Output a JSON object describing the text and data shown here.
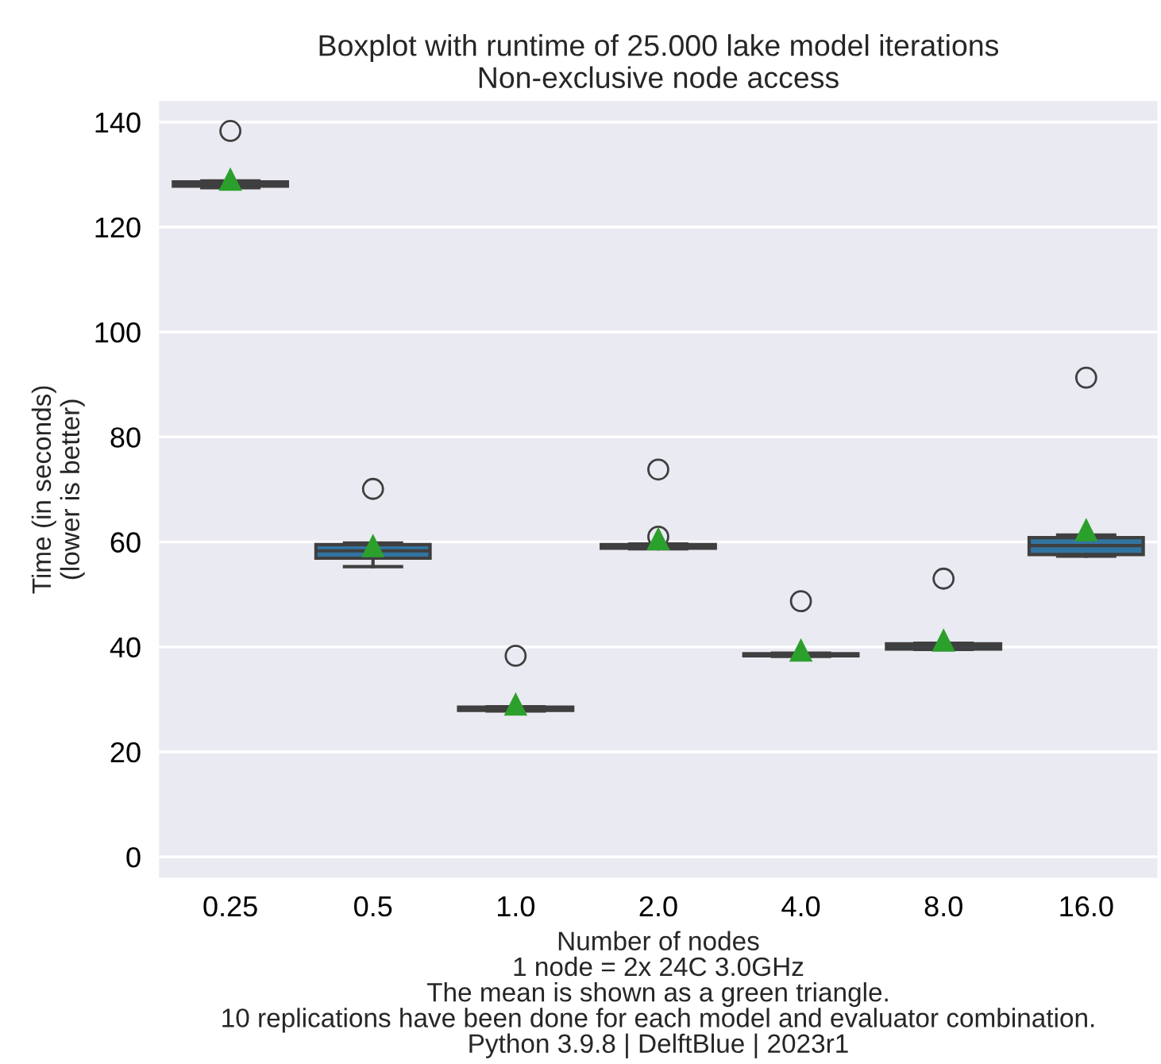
{
  "chart_data": {
    "type": "box",
    "title": "Boxplot with runtime of 25.000 lake model iterations",
    "subtitle": "Non-exclusive node access",
    "xlabel": "Number of nodes",
    "ylabel": "Time (in seconds)\n(lower is better)",
    "categories": [
      "0.25",
      "0.5",
      "1.0",
      "2.0",
      "4.0",
      "8.0",
      "16.0"
    ],
    "series": [
      {
        "color": "#3274a1",
        "boxes": [
          {
            "low": 127.5,
            "q1": 127.8,
            "median": 128.2,
            "q3": 128.6,
            "high": 128.8,
            "mean": 129.0,
            "outliers": [
              138.3
            ]
          },
          {
            "low": 55.3,
            "q1": 56.9,
            "median": 58.3,
            "q3": 59.5,
            "high": 59.8,
            "mean": 59.2,
            "outliers": [
              70.1
            ]
          },
          {
            "low": 27.8,
            "q1": 27.9,
            "median": 28.2,
            "q3": 28.5,
            "high": 28.6,
            "mean": 29.0,
            "outliers": [
              38.3
            ]
          },
          {
            "low": 58.7,
            "q1": 58.8,
            "median": 59.2,
            "q3": 59.5,
            "high": 59.6,
            "mean": 60.5,
            "outliers": [
              61.0,
              73.8
            ]
          },
          {
            "low": 38.2,
            "q1": 38.3,
            "median": 38.5,
            "q3": 38.7,
            "high": 38.8,
            "mean": 39.3,
            "outliers": [
              48.7
            ]
          },
          {
            "low": 39.5,
            "q1": 39.6,
            "median": 40.2,
            "q3": 40.6,
            "high": 40.7,
            "mean": 41.2,
            "outliers": [
              53.0
            ]
          },
          {
            "low": 57.3,
            "q1": 57.6,
            "median": 59.3,
            "q3": 60.8,
            "high": 61.3,
            "mean": 62.2,
            "outliers": [
              91.3
            ]
          }
        ]
      }
    ],
    "ylim": [
      -4,
      144
    ],
    "yticks": [
      0,
      20,
      40,
      60,
      80,
      100,
      120,
      140
    ],
    "grid": "y",
    "marker": "triangle",
    "annotations": [
      "1 node = 2x 24C 3.0GHz",
      "The mean is shown as a green triangle.",
      "10 replications have been done for each model and evaluator combination.",
      "Python 3.9.8 | DelftBlue | 2023r1"
    ]
  }
}
